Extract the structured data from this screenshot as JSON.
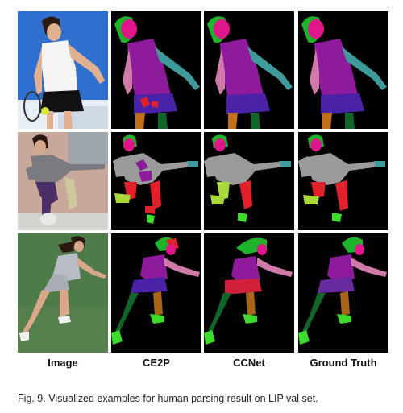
{
  "figure": {
    "column_labels": [
      "Image",
      "CE2P",
      "CCNet",
      "Ground Truth"
    ],
    "caption": "Fig. 9. Visualized examples for human parsing result on LIP val set."
  },
  "colors": {
    "background_mask": "#000000",
    "hair": "#1db32a",
    "face": "#e0168a",
    "upper_clothes": "#8e1a9c",
    "skirt": "#4a22a8",
    "pants": "#e0202a",
    "left_arm": "#3f9b9b",
    "right_arm": "#cf7aa8",
    "legs": "#12662a",
    "right_leg": "#a8651a",
    "shoes": "#3ddc2a",
    "coat": "#9a9a9a",
    "dress_red": "#d01f3a",
    "hat_pink": "#e0168a"
  }
}
